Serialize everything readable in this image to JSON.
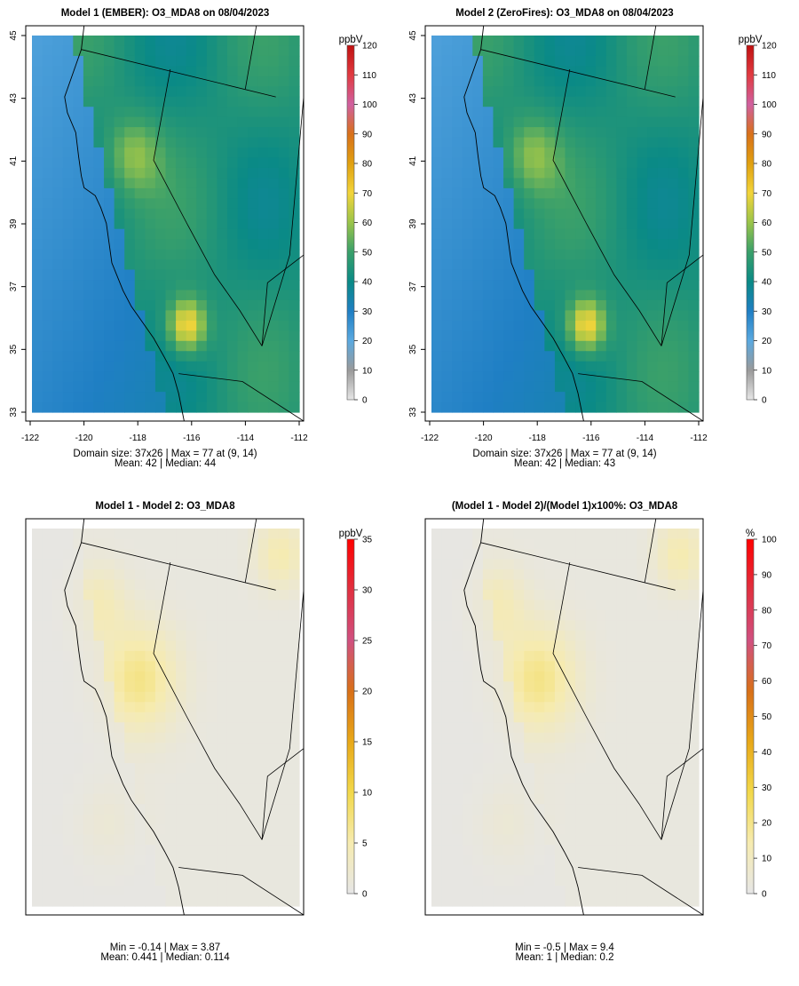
{
  "panels": [
    {
      "title": "Model 1 (EMBER): O3_MDA8 on 08/04/2023",
      "unit": "ppbV",
      "scale_ticks": [
        0,
        10,
        20,
        30,
        40,
        50,
        60,
        70,
        80,
        90,
        100,
        110,
        120
      ],
      "scale_max": 120,
      "mode": "conc",
      "lat_ticks": [
        "45",
        "43",
        "41",
        "39",
        "37",
        "35",
        "33"
      ],
      "lon_ticks": [
        "-122",
        "-120",
        "-118",
        "-116",
        "-114",
        "-112"
      ],
      "stats_line1": "Domain size: 37x26 | Max = 77 at (9, 14)",
      "stats_line2": "Mean: 42 |  Median: 44"
    },
    {
      "title": "Model 2 (ZeroFires): O3_MDA8 on 08/04/2023",
      "unit": "ppbV",
      "scale_ticks": [
        0,
        10,
        20,
        30,
        40,
        50,
        60,
        70,
        80,
        90,
        100,
        110,
        120
      ],
      "scale_max": 120,
      "mode": "conc",
      "lat_ticks": [
        "45",
        "43",
        "41",
        "39",
        "37",
        "35",
        "33"
      ],
      "lon_ticks": [
        "-122",
        "-120",
        "-118",
        "-116",
        "-114",
        "-112"
      ],
      "stats_line1": "Domain size: 37x26 | Max = 77 at (9, 14)",
      "stats_line2": "Mean: 42 |  Median: 43"
    },
    {
      "title": "Model 1 - Model 2: O3_MDA8",
      "unit": "ppbV",
      "scale_ticks": [
        0,
        5,
        10,
        15,
        20,
        25,
        30,
        35
      ],
      "scale_max": 35,
      "mode": "diff",
      "lat_ticks": [],
      "lon_ticks": [],
      "stats_line1": "Min = -0.14 | Max = 3.87",
      "stats_line2": "Mean: 0.441 |  Median: 0.114"
    },
    {
      "title": "(Model 1 - Model 2)/(Model 1)x100%: O3_MDA8",
      "unit": "%",
      "scale_ticks": [
        0,
        10,
        20,
        30,
        40,
        50,
        60,
        70,
        80,
        90,
        100
      ],
      "scale_max": 100,
      "mode": "diff",
      "lat_ticks": [],
      "lon_ticks": [],
      "stats_line1": "Min = -0.5 | Max = 9.4",
      "stats_line2": "Mean: 1 |  Median: 0.2"
    }
  ],
  "colors": {
    "conc_ramp": [
      "#e6e6e6",
      "#9a9a9a",
      "#5aa9e0",
      "#1f7fc4",
      "#0a8a86",
      "#3aa06a",
      "#9ac44a",
      "#f2d43a",
      "#e0a010",
      "#d8701a",
      "#d060a0",
      "#e03a40",
      "#c01010"
    ],
    "diff_ramp": [
      "#e6e6e6",
      "#f6ebb0",
      "#f2d84a",
      "#e8a818",
      "#d87018",
      "#d05080",
      "#e03040",
      "#ff0000"
    ],
    "diff_background": "#e6e6e6",
    "panel_border": "#000000"
  }
}
